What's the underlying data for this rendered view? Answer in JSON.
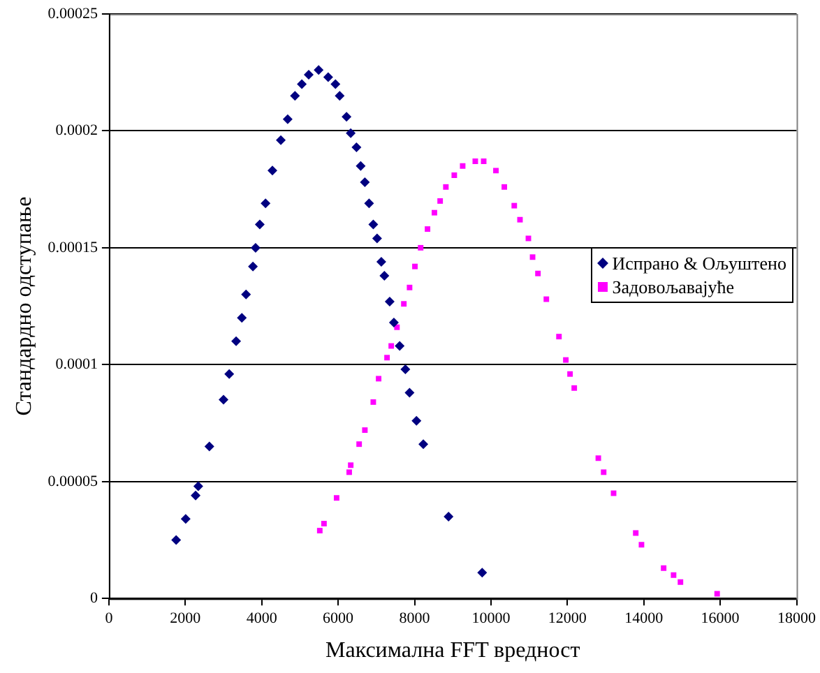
{
  "chart_data": {
    "type": "scatter",
    "xlabel": "Максимална FFT вредност",
    "ylabel": "Стандардно одступање",
    "xlim": [
      0,
      18000
    ],
    "xticks": [
      0,
      2000,
      4000,
      6000,
      8000,
      10000,
      12000,
      14000,
      16000,
      18000
    ],
    "ylim": [
      0,
      0.00025
    ],
    "yticks": [
      0,
      {
        "value": 5e-05,
        "label": "0.00005"
      },
      0.0001,
      0.00015,
      0.0002,
      0.00025
    ],
    "grid": "y",
    "legend": "right",
    "series": [
      {
        "name": "Испрано & Ољуштено",
        "color": "#000080",
        "marker": "diamond",
        "x": [
          1760,
          2010,
          2270,
          2340,
          2630,
          3000,
          3150,
          3330,
          3480,
          3590,
          3770,
          3840,
          3950,
          4100,
          4280,
          4500,
          4680,
          4870,
          5050,
          5230,
          5490,
          5740,
          5930,
          6040,
          6220,
          6330,
          6480,
          6590,
          6700,
          6810,
          6920,
          7020,
          7130,
          7210,
          7350,
          7460,
          7610,
          7760,
          7870,
          8050,
          8230,
          8890,
          9770
        ],
        "values": [
          2.5e-05,
          3.4e-05,
          4.4e-05,
          4.8e-05,
          6.5e-05,
          8.5e-05,
          9.6e-05,
          0.00011,
          0.00012,
          0.00013,
          0.000142,
          0.00015,
          0.00016,
          0.000169,
          0.000183,
          0.000196,
          0.000205,
          0.000215,
          0.00022,
          0.000224,
          0.000226,
          0.000223,
          0.00022,
          0.000215,
          0.000206,
          0.000199,
          0.000193,
          0.000185,
          0.000178,
          0.000169,
          0.00016,
          0.000154,
          0.000144,
          0.000138,
          0.000127,
          0.000118,
          0.000108,
          9.8e-05,
          8.8e-05,
          7.6e-05,
          6.6e-05,
          3.5e-05,
          1.1e-05
        ]
      },
      {
        "name": "Задовољавајуће",
        "color": "#ff00ff",
        "marker": "square",
        "x": [
          5520,
          5630,
          5960,
          6290,
          6330,
          6550,
          6700,
          6920,
          7060,
          7280,
          7390,
          7540,
          7720,
          7870,
          8010,
          8160,
          8340,
          8520,
          8670,
          8820,
          9040,
          9260,
          9590,
          9810,
          10130,
          10350,
          10610,
          10760,
          10980,
          11090,
          11230,
          11450,
          11780,
          11960,
          12070,
          12180,
          12810,
          12950,
          13210,
          13790,
          13940,
          14520,
          14780,
          14960,
          15920
        ],
        "values": [
          2.9e-05,
          3.2e-05,
          4.3e-05,
          5.4e-05,
          5.7e-05,
          6.6e-05,
          7.2e-05,
          8.4e-05,
          9.4e-05,
          0.000103,
          0.000108,
          0.000116,
          0.000126,
          0.000133,
          0.000142,
          0.00015,
          0.000158,
          0.000165,
          0.00017,
          0.000176,
          0.000181,
          0.000185,
          0.000187,
          0.000187,
          0.000183,
          0.000176,
          0.000168,
          0.000162,
          0.000154,
          0.000146,
          0.000139,
          0.000128,
          0.000112,
          0.000102,
          9.6e-05,
          9e-05,
          6e-05,
          5.4e-05,
          4.5e-05,
          2.8e-05,
          2.3e-05,
          1.3e-05,
          1e-05,
          7e-06,
          2e-06
        ]
      }
    ]
  }
}
